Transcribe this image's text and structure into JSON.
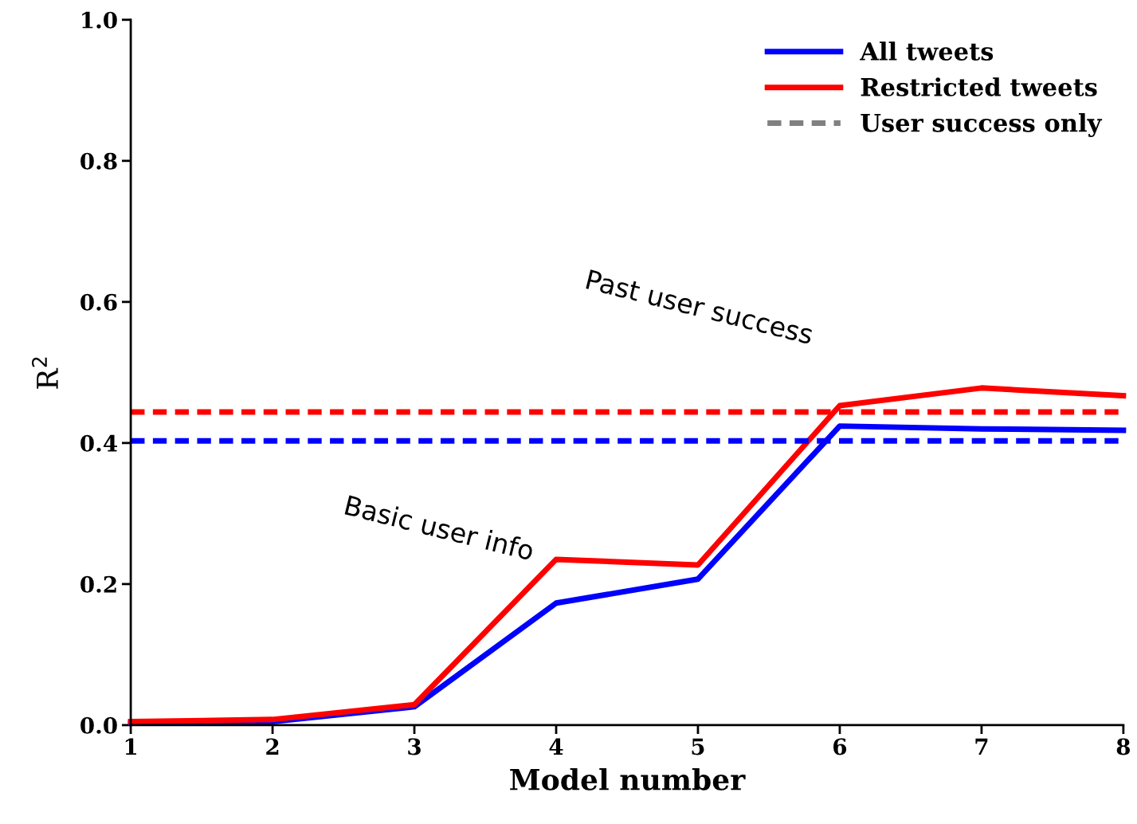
{
  "chart_data": {
    "type": "line",
    "xlabel": "Model number",
    "ylabel": "R$^{2}$",
    "x": [
      1,
      2,
      3,
      4,
      5,
      6,
      7,
      8
    ],
    "series": [
      {
        "name": "All tweets",
        "color": "#0000ff",
        "values": [
          0.003,
          0.005,
          0.026,
          0.173,
          0.207,
          0.424,
          0.42,
          0.418
        ]
      },
      {
        "name": "Restricted tweets",
        "color": "#ff0000",
        "values": [
          0.005,
          0.008,
          0.029,
          0.235,
          0.227,
          0.453,
          0.478,
          0.467
        ]
      },
      {
        "name": "User success only",
        "color": "#808080",
        "line_style": "dashed",
        "values": [
          null,
          null,
          null,
          null,
          null,
          null,
          null,
          null
        ]
      }
    ],
    "ref_lines": [
      {
        "axis": "y",
        "value": 0.444,
        "color": "#ff0000",
        "line_style": "dashed"
      },
      {
        "axis": "y",
        "value": 0.403,
        "color": "#0000ff",
        "line_style": "dashed"
      }
    ],
    "annotations": [
      "Past user success",
      "Basic user info"
    ],
    "xlim": [
      1,
      8
    ],
    "ylim": [
      0,
      1
    ],
    "xticks": [
      1,
      2,
      3,
      4,
      5,
      6,
      7,
      8
    ],
    "yticks": [
      {
        "value": 0,
        "label": "0.0"
      },
      {
        "value": 0.2,
        "label": "0.2"
      },
      {
        "value": 0.4,
        "label": "0.4"
      },
      {
        "value": 0.6,
        "label": "0.6"
      },
      {
        "value": 0.8,
        "label": "0.8"
      },
      {
        "value": 1,
        "label": "1.0"
      }
    ],
    "legend": "top right",
    "grid": false,
    "marker": "none",
    "line_style": "solid"
  }
}
